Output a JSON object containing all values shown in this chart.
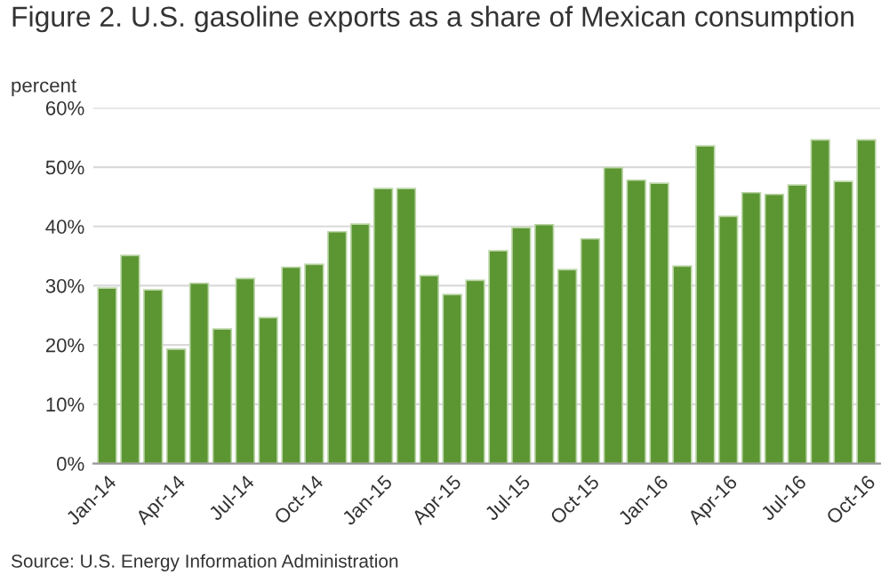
{
  "chart_data": {
    "type": "bar",
    "title": "Figure 2. U.S. gasoline exports as a share of Mexican consumption",
    "ylabel": "percent",
    "categories": [
      "Jan-14",
      null,
      null,
      "Apr-14",
      null,
      null,
      "Jul-14",
      null,
      null,
      "Oct-14",
      null,
      null,
      "Jan-15",
      null,
      null,
      "Apr-15",
      null,
      null,
      "Jul-15",
      null,
      null,
      "Oct-15",
      null,
      null,
      "Jan-16",
      null,
      null,
      "Apr-16",
      null,
      null,
      "Jul-16",
      null,
      null,
      "Oct-16"
    ],
    "values": [
      29.6,
      35.1,
      29.3,
      19.3,
      30.4,
      22.7,
      31.2,
      24.6,
      33.1,
      33.6,
      39.1,
      40.4,
      46.4,
      46.4,
      31.7,
      28.5,
      30.9,
      35.9,
      39.8,
      40.3,
      32.7,
      37.9,
      49.9,
      47.8,
      47.3,
      33.3,
      53.6,
      41.7,
      45.7,
      45.4,
      47.0,
      54.6,
      47.6,
      54.6
    ],
    "color": "#5c9632",
    "ylim": [
      0,
      60
    ],
    "yticks": [
      {
        "value": 0,
        "label": "0%"
      },
      {
        "value": 10,
        "label": "10%"
      },
      {
        "value": 20,
        "label": "20%"
      },
      {
        "value": 30,
        "label": "30%"
      },
      {
        "value": 40,
        "label": "40%"
      },
      {
        "value": 50,
        "label": "50%"
      },
      {
        "value": 60,
        "label": "60%"
      }
    ],
    "grid": "y",
    "annotations": [
      "Source: U.S. Energy Information Administration"
    ]
  }
}
